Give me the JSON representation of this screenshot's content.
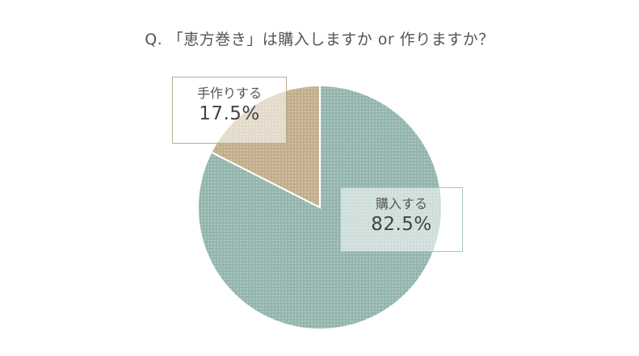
{
  "chart_data": {
    "type": "pie",
    "title": "Q. 「恵方巻き」は購入しますか or 作りますか？",
    "slices": [
      {
        "label": "購入する",
        "value": 82.5,
        "value_label": "82.5%",
        "color": "#93b5ad"
      },
      {
        "label": "手作りする",
        "value": 17.5,
        "value_label": "17.5%",
        "color": "#c2ae8a"
      }
    ],
    "start_angle_deg": 0,
    "direction": "clockwise"
  }
}
